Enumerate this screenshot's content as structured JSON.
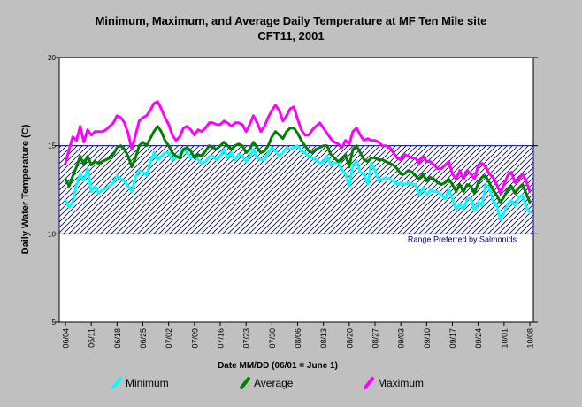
{
  "chart_data": {
    "type": "line",
    "title": "Minimum, Maximum, and Average Daily Temperature at MF Ten Mile site",
    "subtitle": "CFT11, 2001",
    "xlabel": "Date MM/DD (06/01 = June 1)",
    "ylabel": "Daily Water Temperature (C)",
    "ylim": [
      5,
      20
    ],
    "yticks": [
      5,
      10,
      15,
      20
    ],
    "x_start_label": "06/04",
    "x_end_label": "10/08",
    "xticks": [
      "06/04",
      "06/11",
      "06/18",
      "06/25",
      "07/02",
      "07/09",
      "07/16",
      "07/23",
      "07/30",
      "08/06",
      "08/13",
      "08/20",
      "08/27",
      "09/03",
      "09/10",
      "09/17",
      "09/24",
      "10/01",
      "10/08"
    ],
    "grid": false,
    "legend_position": "bottom",
    "band": {
      "lower": 10,
      "upper": 15,
      "label": "Range Preferred by Salmonids",
      "color": "#000080"
    },
    "series": [
      {
        "name": "Minimum",
        "color": "#00ffff",
        "x": [
          "06/04",
          "06/05",
          "06/06",
          "06/07",
          "06/08",
          "06/09",
          "06/10",
          "06/11",
          "06/12",
          "06/13",
          "06/14",
          "06/15",
          "06/16",
          "06/17",
          "06/18",
          "06/19",
          "06/20",
          "06/21",
          "06/22",
          "06/23",
          "06/24",
          "06/25",
          "06/26",
          "06/27",
          "06/28",
          "06/29",
          "06/30",
          "07/01",
          "07/02",
          "07/03",
          "07/04",
          "07/05",
          "07/06",
          "07/07",
          "07/08",
          "07/09",
          "07/10",
          "07/11",
          "07/12",
          "07/13",
          "07/14",
          "07/15",
          "07/16",
          "07/17",
          "07/18",
          "07/19",
          "07/20",
          "07/21",
          "07/22",
          "07/23",
          "07/24",
          "07/25",
          "07/26",
          "07/27",
          "07/28",
          "07/29",
          "07/30",
          "07/31",
          "08/01",
          "08/02",
          "08/03",
          "08/04",
          "08/05",
          "08/06",
          "08/07",
          "08/08",
          "08/09",
          "08/10",
          "08/11",
          "08/12",
          "08/13",
          "08/14",
          "08/15",
          "08/16",
          "08/17",
          "08/18",
          "08/19",
          "08/20",
          "08/21",
          "08/22",
          "08/23",
          "08/24",
          "08/25",
          "08/26",
          "08/27",
          "08/28",
          "08/29",
          "08/30",
          "08/31",
          "09/01",
          "09/02",
          "09/03",
          "09/04",
          "09/05",
          "09/06",
          "09/07",
          "09/08",
          "09/09",
          "09/10",
          "09/11",
          "09/12",
          "09/13",
          "09/14",
          "09/15",
          "09/16",
          "09/17",
          "09/18",
          "09/19",
          "09/20",
          "09/21",
          "09/22",
          "09/23",
          "09/24",
          "09/25",
          "09/26",
          "09/27",
          "09/28",
          "09/29",
          "09/30",
          "10/01",
          "10/02",
          "10/03",
          "10/04",
          "10/05",
          "10/06",
          "10/07",
          "10/08"
        ],
        "values": [
          11.9,
          11.5,
          11.8,
          12.8,
          13.4,
          13.0,
          13.7,
          12.4,
          12.7,
          12.3,
          12.5,
          12.6,
          12.7,
          12.9,
          13.3,
          13.1,
          13.0,
          12.7,
          12.4,
          13.2,
          13.6,
          13.5,
          13.3,
          14.0,
          14.6,
          14.2,
          14.4,
          14.6,
          14.6,
          14.2,
          14.3,
          14.5,
          14.8,
          14.6,
          14.3,
          14.4,
          14.2,
          14.0,
          14.1,
          14.4,
          14.4,
          14.2,
          14.4,
          14.8,
          14.3,
          14.6,
          14.2,
          14.5,
          14.4,
          14.1,
          14.4,
          14.8,
          14.3,
          14.2,
          14.2,
          14.6,
          14.9,
          14.7,
          14.4,
          14.6,
          14.9,
          14.8,
          14.9,
          15.0,
          14.7,
          14.6,
          14.4,
          14.3,
          14.2,
          14.0,
          14.1,
          14.4,
          13.9,
          14.0,
          14.1,
          13.6,
          13.4,
          12.7,
          13.9,
          14.1,
          13.5,
          13.4,
          12.8,
          14.0,
          13.6,
          13.0,
          13.1,
          13.2,
          13.1,
          13.0,
          12.8,
          12.9,
          12.8,
          12.9,
          12.8,
          12.8,
          12.2,
          12.6,
          12.2,
          12.5,
          12.4,
          12.4,
          12.2,
          12.0,
          12.5,
          12.0,
          11.4,
          11.7,
          11.4,
          12.0,
          12.0,
          11.3,
          11.8,
          11.6,
          12.8,
          12.6,
          11.9,
          11.6,
          10.8,
          11.2,
          11.7,
          11.9,
          11.6,
          12.1,
          12.2,
          11.5,
          11.2
        ]
      },
      {
        "name": "Average",
        "color": "#008000",
        "x": [
          "06/04",
          "06/05",
          "06/06",
          "06/07",
          "06/08",
          "06/09",
          "06/10",
          "06/11",
          "06/12",
          "06/13",
          "06/14",
          "06/15",
          "06/16",
          "06/17",
          "06/18",
          "06/19",
          "06/20",
          "06/21",
          "06/22",
          "06/23",
          "06/24",
          "06/25",
          "06/26",
          "06/27",
          "06/28",
          "06/29",
          "06/30",
          "07/01",
          "07/02",
          "07/03",
          "07/04",
          "07/05",
          "07/06",
          "07/07",
          "07/08",
          "07/09",
          "07/10",
          "07/11",
          "07/12",
          "07/13",
          "07/14",
          "07/15",
          "07/16",
          "07/17",
          "07/18",
          "07/19",
          "07/20",
          "07/21",
          "07/22",
          "07/23",
          "07/24",
          "07/25",
          "07/26",
          "07/27",
          "07/28",
          "07/29",
          "07/30",
          "07/31",
          "08/01",
          "08/02",
          "08/03",
          "08/04",
          "08/05",
          "08/06",
          "08/07",
          "08/08",
          "08/09",
          "08/10",
          "08/11",
          "08/12",
          "08/13",
          "08/14",
          "08/15",
          "08/16",
          "08/17",
          "08/18",
          "08/19",
          "08/20",
          "08/21",
          "08/22",
          "08/23",
          "08/24",
          "08/25",
          "08/26",
          "08/27",
          "08/28",
          "08/29",
          "08/30",
          "08/31",
          "09/01",
          "09/02",
          "09/03",
          "09/04",
          "09/05",
          "09/06",
          "09/07",
          "09/08",
          "09/09",
          "09/10",
          "09/11",
          "09/12",
          "09/13",
          "09/14",
          "09/15",
          "09/16",
          "09/17",
          "09/18",
          "09/19",
          "09/20",
          "09/21",
          "09/22",
          "09/23",
          "09/24",
          "09/25",
          "09/26",
          "09/27",
          "09/28",
          "09/29",
          "09/30",
          "10/01",
          "10/02",
          "10/03",
          "10/04",
          "10/05",
          "10/06",
          "10/07",
          "10/08"
        ],
        "values": [
          13.1,
          12.7,
          13.3,
          13.8,
          14.4,
          13.9,
          14.4,
          13.9,
          14.1,
          14.0,
          14.1,
          14.2,
          14.3,
          14.5,
          14.9,
          15.0,
          14.8,
          14.4,
          13.8,
          14.3,
          15.0,
          15.2,
          15.0,
          15.4,
          15.8,
          16.1,
          15.8,
          15.3,
          15.0,
          14.6,
          14.4,
          14.3,
          14.8,
          14.9,
          14.7,
          14.3,
          14.5,
          14.4,
          14.7,
          15.0,
          14.9,
          14.8,
          15.0,
          15.2,
          15.0,
          14.8,
          15.0,
          15.1,
          15.0,
          14.6,
          14.8,
          15.2,
          14.9,
          14.6,
          14.7,
          15.0,
          15.5,
          15.8,
          15.6,
          15.4,
          15.8,
          16.0,
          16.0,
          15.7,
          15.3,
          15.0,
          14.7,
          14.6,
          14.8,
          14.9,
          15.0,
          15.0,
          14.5,
          14.3,
          14.1,
          14.2,
          14.5,
          13.8,
          14.8,
          15.0,
          14.6,
          14.2,
          14.1,
          14.3,
          14.3,
          14.2,
          14.2,
          14.1,
          14.0,
          13.9,
          13.7,
          13.4,
          13.4,
          13.6,
          13.5,
          13.3,
          13.1,
          13.4,
          13.0,
          13.2,
          13.1,
          12.9,
          12.8,
          12.9,
          13.1,
          12.8,
          12.4,
          12.8,
          12.4,
          12.8,
          12.7,
          12.3,
          12.9,
          13.2,
          13.3,
          12.9,
          12.5,
          12.2,
          11.8,
          12.1,
          12.5,
          12.7,
          12.3,
          12.6,
          12.8,
          12.3,
          11.8
        ]
      },
      {
        "name": "Maximum",
        "color": "#ff00ff",
        "x": [
          "06/04",
          "06/05",
          "06/06",
          "06/07",
          "06/08",
          "06/09",
          "06/10",
          "06/11",
          "06/12",
          "06/13",
          "06/14",
          "06/15",
          "06/16",
          "06/17",
          "06/18",
          "06/19",
          "06/20",
          "06/21",
          "06/22",
          "06/23",
          "06/24",
          "06/25",
          "06/26",
          "06/27",
          "06/28",
          "06/29",
          "06/30",
          "07/01",
          "07/02",
          "07/03",
          "07/04",
          "07/05",
          "07/06",
          "07/07",
          "07/08",
          "07/09",
          "07/10",
          "07/11",
          "07/12",
          "07/13",
          "07/14",
          "07/15",
          "07/16",
          "07/17",
          "07/18",
          "07/19",
          "07/20",
          "07/21",
          "07/22",
          "07/23",
          "07/24",
          "07/25",
          "07/26",
          "07/27",
          "07/28",
          "07/29",
          "07/30",
          "07/31",
          "08/01",
          "08/02",
          "08/03",
          "08/04",
          "08/05",
          "08/06",
          "08/07",
          "08/08",
          "08/09",
          "08/10",
          "08/11",
          "08/12",
          "08/13",
          "08/14",
          "08/15",
          "08/16",
          "08/17",
          "08/18",
          "08/19",
          "08/20",
          "08/21",
          "08/22",
          "08/23",
          "08/24",
          "08/25",
          "08/26",
          "08/27",
          "08/28",
          "08/29",
          "08/30",
          "08/31",
          "09/01",
          "09/02",
          "09/03",
          "09/04",
          "09/05",
          "09/06",
          "09/07",
          "09/08",
          "09/09",
          "09/10",
          "09/11",
          "09/12",
          "09/13",
          "09/14",
          "09/15",
          "09/16",
          "09/17",
          "09/18",
          "09/19",
          "09/20",
          "09/21",
          "09/22",
          "09/23",
          "09/24",
          "09/25",
          "09/26",
          "09/27",
          "09/28",
          "09/29",
          "09/30",
          "10/01",
          "10/02",
          "10/03",
          "10/04",
          "10/05",
          "10/06",
          "10/07",
          "10/08"
        ],
        "values": [
          14.0,
          14.8,
          15.5,
          15.3,
          16.1,
          15.2,
          15.9,
          15.6,
          15.8,
          15.8,
          15.8,
          15.9,
          16.1,
          16.3,
          16.7,
          16.6,
          16.3,
          15.7,
          14.8,
          15.6,
          16.4,
          16.6,
          16.7,
          17.0,
          17.4,
          17.5,
          17.1,
          16.6,
          16.2,
          15.6,
          15.3,
          15.5,
          16.0,
          16.1,
          15.9,
          15.6,
          15.9,
          15.8,
          16.0,
          16.3,
          16.3,
          16.2,
          16.2,
          16.4,
          16.3,
          16.1,
          16.3,
          16.3,
          16.2,
          15.8,
          16.2,
          16.7,
          16.3,
          15.8,
          16.1,
          16.6,
          17.0,
          17.3,
          17.0,
          16.4,
          16.7,
          17.1,
          17.2,
          16.5,
          15.9,
          15.6,
          15.6,
          15.9,
          16.1,
          16.3,
          16.0,
          15.7,
          15.4,
          15.2,
          15.1,
          14.9,
          15.3,
          15.1,
          15.8,
          16.0,
          15.6,
          15.3,
          15.4,
          15.3,
          15.3,
          15.2,
          15.0,
          15.0,
          14.9,
          14.6,
          14.3,
          14.2,
          14.5,
          14.4,
          14.3,
          14.3,
          14.0,
          14.4,
          14.1,
          14.1,
          13.9,
          13.7,
          13.7,
          13.9,
          14.1,
          13.4,
          13.1,
          13.6,
          13.1,
          13.6,
          13.4,
          13.1,
          13.9,
          14.0,
          13.8,
          13.4,
          13.2,
          12.8,
          12.3,
          12.8,
          13.3,
          13.5,
          12.9,
          13.1,
          13.4,
          13.0,
          12.4
        ]
      }
    ]
  }
}
